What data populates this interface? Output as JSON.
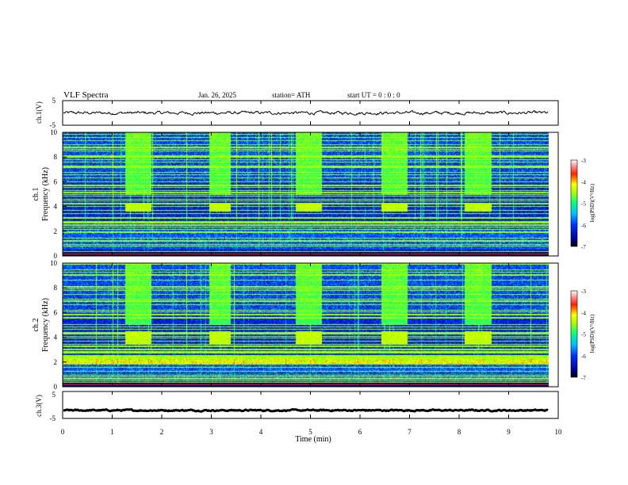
{
  "header": {
    "title": "VLF  Spectra",
    "date": "Jan. 26, 2025",
    "station": "station= ATH",
    "start": "start  UT  =    0  : 0  : 0"
  },
  "chart_data": [
    {
      "type": "line",
      "ylabel": "ch.1(V)",
      "yticks": [
        "5",
        "-5"
      ],
      "ylim": [
        -5,
        5
      ],
      "xlim": [
        0,
        10
      ],
      "x_end": 9.8,
      "baseline": 0,
      "noise": 0.45
    },
    {
      "type": "heatmap",
      "ylabel_line1": "ch.1",
      "ylabel_line2": "Frequency (kHz)",
      "yticks": [
        "10",
        "8",
        "6",
        "4",
        "2",
        "0"
      ],
      "ylim": [
        0,
        10
      ],
      "xlim": [
        0,
        10
      ],
      "x_end": 9.8,
      "tone_windows": [
        [
          1.25,
          1.78
        ],
        [
          2.95,
          3.38
        ],
        [
          4.7,
          5.22
        ],
        [
          6.42,
          6.95
        ],
        [
          8.1,
          8.65
        ]
      ],
      "tone_band_khz": [
        3.6,
        4.3
      ],
      "colorbar": {
        "label": "log(PSD)(V²/Hz)",
        "ticks": [
          "-3",
          "-4",
          "-5",
          "-6",
          "-7"
        ],
        "range": [
          -7,
          -3
        ]
      }
    },
    {
      "type": "heatmap",
      "ylabel_line1": "ch.2",
      "ylabel_line2": "Frequency (kHz)",
      "yticks": [
        "10",
        "8",
        "6",
        "4",
        "2",
        "0"
      ],
      "ylim": [
        0,
        10
      ],
      "xlim": [
        0,
        10
      ],
      "x_end": 9.8,
      "tone_windows": [
        [
          1.25,
          1.78
        ],
        [
          2.95,
          3.38
        ],
        [
          4.7,
          5.22
        ],
        [
          6.42,
          6.95
        ],
        [
          8.1,
          8.65
        ]
      ],
      "tone_band_khz": [
        3.4,
        4.5
      ],
      "colorbar": {
        "label": "log(PSD)(V²/Hz)",
        "ticks": [
          "-3",
          "-4",
          "-5",
          "-6",
          "-7"
        ],
        "range": [
          -7,
          -3
        ]
      }
    },
    {
      "type": "line",
      "ylabel": "ch.3(V)",
      "yticks": [
        "5",
        "-5"
      ],
      "ylim": [
        -5,
        5
      ],
      "xlim": [
        0,
        10
      ],
      "x_end": 9.8,
      "baseline": -2,
      "noise": 0.18
    }
  ],
  "xaxis": {
    "label": "Time  (min)",
    "ticks": [
      "0",
      "1",
      "2",
      "3",
      "4",
      "5",
      "6",
      "7",
      "8",
      "9",
      "10"
    ]
  },
  "colors": {
    "spectrogram_low": "#000080",
    "spectrogram_high": "#ffffff",
    "trace": "#000000"
  }
}
